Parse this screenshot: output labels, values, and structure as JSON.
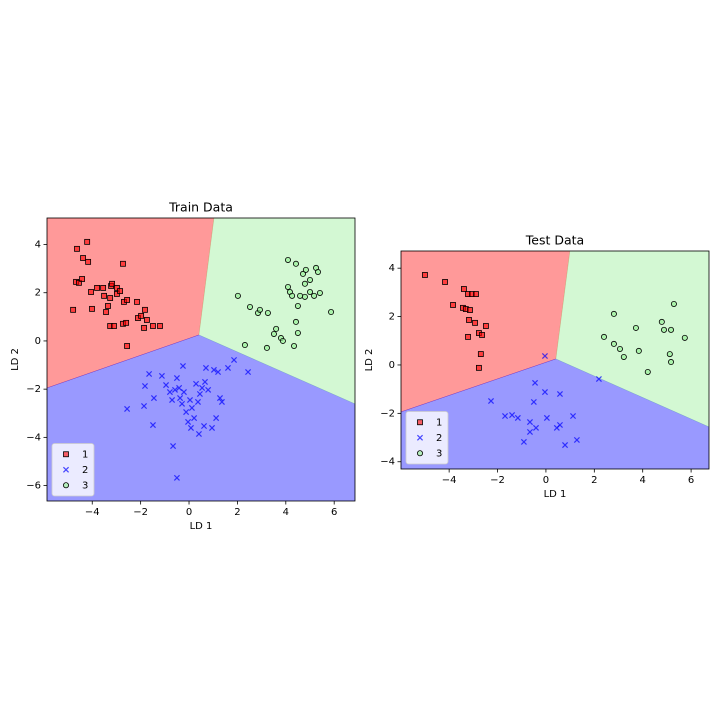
{
  "chart_data": [
    {
      "type": "scatter",
      "title": "Train Data",
      "xlabel": "LD 1",
      "ylabel": "LD 2",
      "xlim": [
        -5.87,
        6.86
      ],
      "ylim": [
        -6.64,
        5.1
      ],
      "xticks": [
        {
          "value": -4,
          "label": "−4"
        },
        {
          "value": -2,
          "label": "−2"
        },
        0,
        2,
        4,
        6
      ],
      "yticks": [
        {
          "value": -6,
          "label": "−6"
        },
        {
          "value": -4,
          "label": "−4"
        },
        {
          "value": -2,
          "label": "−2"
        },
        0,
        2,
        4
      ],
      "legend": "lower left",
      "region_alpha": 0.4,
      "series": [
        {
          "name": "1",
          "color": "red",
          "marker": "s",
          "x": [
            -4.63,
            -4.21,
            -4.38,
            -4.67,
            -4.55,
            -4.42,
            -4.17,
            -4.79,
            -4.05,
            -3.8,
            -3.55,
            -3.51,
            -3.22,
            -3.18,
            -2.98,
            -2.98,
            -3.43,
            -3.35,
            -3.26,
            -2.85,
            -3.26,
            -3.1,
            -2.73,
            -2.69,
            -2.56,
            -2.73,
            -2.6,
            -2.56,
            -2.15,
            -2.11,
            -1.82,
            -1.74,
            -1.86,
            -1.49,
            -1.2,
            -1.98,
            -4.01
          ],
          "values": [
            3.82,
            4.11,
            3.44,
            2.45,
            2.41,
            2.57,
            3.28,
            1.29,
            2.03,
            2.2,
            2.2,
            1.87,
            2.28,
            2.37,
            2.2,
            1.95,
            1.2,
            1.45,
            1.78,
            2.07,
            0.62,
            0.62,
            3.2,
            1.62,
            1.7,
            0.71,
            0.75,
            -0.21,
            1.62,
            0.95,
            1.29,
            0.87,
            0.54,
            0.62,
            0.62,
            1.04,
            1.33
          ],
          "region": [
            [
              -5.87,
              5.1
            ],
            [
              1.03,
              5.1
            ],
            [
              0.41,
              0.25
            ],
            [
              -5.87,
              -1.95
            ]
          ]
        },
        {
          "name": "2",
          "color": "blue",
          "marker": "x",
          "x": [
            -1.65,
            -1.82,
            -1.86,
            -1.45,
            -1.49,
            -1.12,
            -0.95,
            -0.79,
            -0.7,
            -0.58,
            -0.5,
            -0.41,
            -0.37,
            -0.29,
            -0.25,
            -0.21,
            -0.12,
            -0.04,
            0.04,
            0.08,
            0.12,
            0.21,
            0.29,
            0.37,
            0.45,
            0.54,
            0.66,
            0.7,
            0.79,
            0.95,
            1.03,
            1.12,
            1.2,
            1.28,
            1.36,
            1.61,
            1.86,
            2.44,
            -2.56,
            -0.66,
            -0.5,
            0.41,
            0.62
          ],
          "values": [
            -1.37,
            -1.87,
            -2.7,
            -2.37,
            -3.49,
            -1.45,
            -1.83,
            -2.12,
            -2.45,
            -2.03,
            -1.54,
            -1.95,
            -2.37,
            -2.61,
            -1.04,
            -2.12,
            -2.95,
            -3.36,
            -2.45,
            -3.61,
            -2.78,
            -3.2,
            -1.78,
            -2.53,
            -2.2,
            -1.95,
            -1.7,
            -1.12,
            -2.03,
            -3.61,
            -1.2,
            -3.2,
            -1.29,
            -2.37,
            -2.53,
            -1.12,
            -0.79,
            -1.29,
            -2.82,
            -4.36,
            -5.68,
            -3.86,
            -3.53
          ],
          "region": [
            [
              -5.87,
              -1.95
            ],
            [
              0.41,
              0.25
            ],
            [
              6.86,
              -2.61
            ],
            [
              6.86,
              -6.64
            ],
            [
              -5.87,
              -6.64
            ]
          ]
        },
        {
          "name": "3",
          "color": "lightgreen",
          "marker": "o",
          "x": [
            4.09,
            4.42,
            4.71,
            4.83,
            4.09,
            4.17,
            4.26,
            4.79,
            5.0,
            5.25,
            5.33,
            5.0,
            4.79,
            4.59,
            5.17,
            5.41,
            5.87,
            2.02,
            2.52,
            2.85,
            2.93,
            3.26,
            3.51,
            3.6,
            3.8,
            3.88,
            4.34,
            4.5,
            4.42,
            4.5,
            3.22,
            2.31
          ],
          "values": [
            3.36,
            3.2,
            2.78,
            2.95,
            2.24,
            2.03,
            1.87,
            2.37,
            2.53,
            3.03,
            2.86,
            2.03,
            1.83,
            1.87,
            1.87,
            1.99,
            1.2,
            1.87,
            1.41,
            1.16,
            1.29,
            1.16,
            0.29,
            0.5,
            0.12,
            0.0,
            -0.21,
            1.45,
            0.79,
            0.33,
            -0.29,
            -0.17
          ],
          "region": [
            [
              1.03,
              5.1
            ],
            [
              6.86,
              5.1
            ],
            [
              6.86,
              -2.61
            ],
            [
              0.41,
              0.25
            ]
          ]
        }
      ]
    },
    {
      "type": "scatter",
      "title": "Test Data",
      "xlabel": "LD 1",
      "ylabel": "LD 2",
      "xlim": [
        -5.99,
        6.74
      ],
      "ylim": [
        -4.3,
        4.71
      ],
      "xticks": [
        {
          "value": -4,
          "label": "−4"
        },
        {
          "value": -2,
          "label": "−2"
        },
        0,
        2,
        4,
        6
      ],
      "yticks": [
        {
          "value": -4,
          "label": "−4"
        },
        {
          "value": -2,
          "label": "−2"
        },
        0,
        2,
        4
      ],
      "legend": "lower left",
      "region_alpha": 0.4,
      "series": [
        {
          "name": "1",
          "color": "red",
          "marker": "s",
          "x": [
            -5.0,
            -4.17,
            -3.84,
            -3.39,
            -3.43,
            -3.31,
            -3.14,
            -3.22,
            -3.06,
            -2.89,
            -3.18,
            -2.93,
            -3.22,
            -2.77,
            -2.64,
            -2.48,
            -2.69,
            -2.77
          ],
          "values": [
            3.72,
            3.43,
            2.48,
            3.14,
            2.36,
            2.31,
            2.27,
            2.93,
            2.93,
            2.93,
            1.86,
            1.74,
            1.16,
            1.32,
            1.24,
            1.61,
            0.45,
            -0.12
          ],
          "region": [
            [
              -5.99,
              4.71
            ],
            [
              0.99,
              4.71
            ],
            [
              0.41,
              0.25
            ],
            [
              -5.99,
              -1.94
            ]
          ]
        },
        {
          "name": "2",
          "color": "blue",
          "marker": "x",
          "x": [
            -0.04,
            -2.27,
            -1.69,
            -1.4,
            -1.16,
            -0.91,
            -0.66,
            -0.66,
            -0.41,
            -0.45,
            -0.5,
            -0.04,
            0.04,
            0.45,
            0.58,
            0.58,
            0.79,
            1.12,
            1.28,
            2.19
          ],
          "values": [
            0.37,
            -1.49,
            -2.11,
            -2.07,
            -2.19,
            -3.18,
            -2.36,
            -2.77,
            -2.6,
            -0.74,
            -1.53,
            -1.12,
            -2.19,
            -2.6,
            -2.48,
            -1.2,
            -3.31,
            -2.11,
            -3.1,
            -0.58
          ],
          "region": [
            [
              -5.99,
              -1.94
            ],
            [
              0.41,
              0.25
            ],
            [
              6.74,
              -2.56
            ],
            [
              6.74,
              -4.3
            ],
            [
              -5.99,
              -4.3
            ]
          ]
        },
        {
          "name": "3",
          "color": "lightgreen",
          "marker": "o",
          "x": [
            2.4,
            2.81,
            2.81,
            3.06,
            3.22,
            3.72,
            3.84,
            4.21,
            4.79,
            4.88,
            5.17,
            5.29,
            5.12,
            5.17,
            5.74
          ],
          "values": [
            1.16,
            2.11,
            0.87,
            0.66,
            0.33,
            1.53,
            0.58,
            -0.29,
            1.78,
            1.45,
            1.45,
            2.52,
            0.45,
            0.12,
            1.12
          ],
          "region": [
            [
              0.99,
              4.71
            ],
            [
              6.74,
              4.71
            ],
            [
              6.74,
              -2.56
            ],
            [
              0.41,
              0.25
            ]
          ]
        }
      ]
    }
  ]
}
